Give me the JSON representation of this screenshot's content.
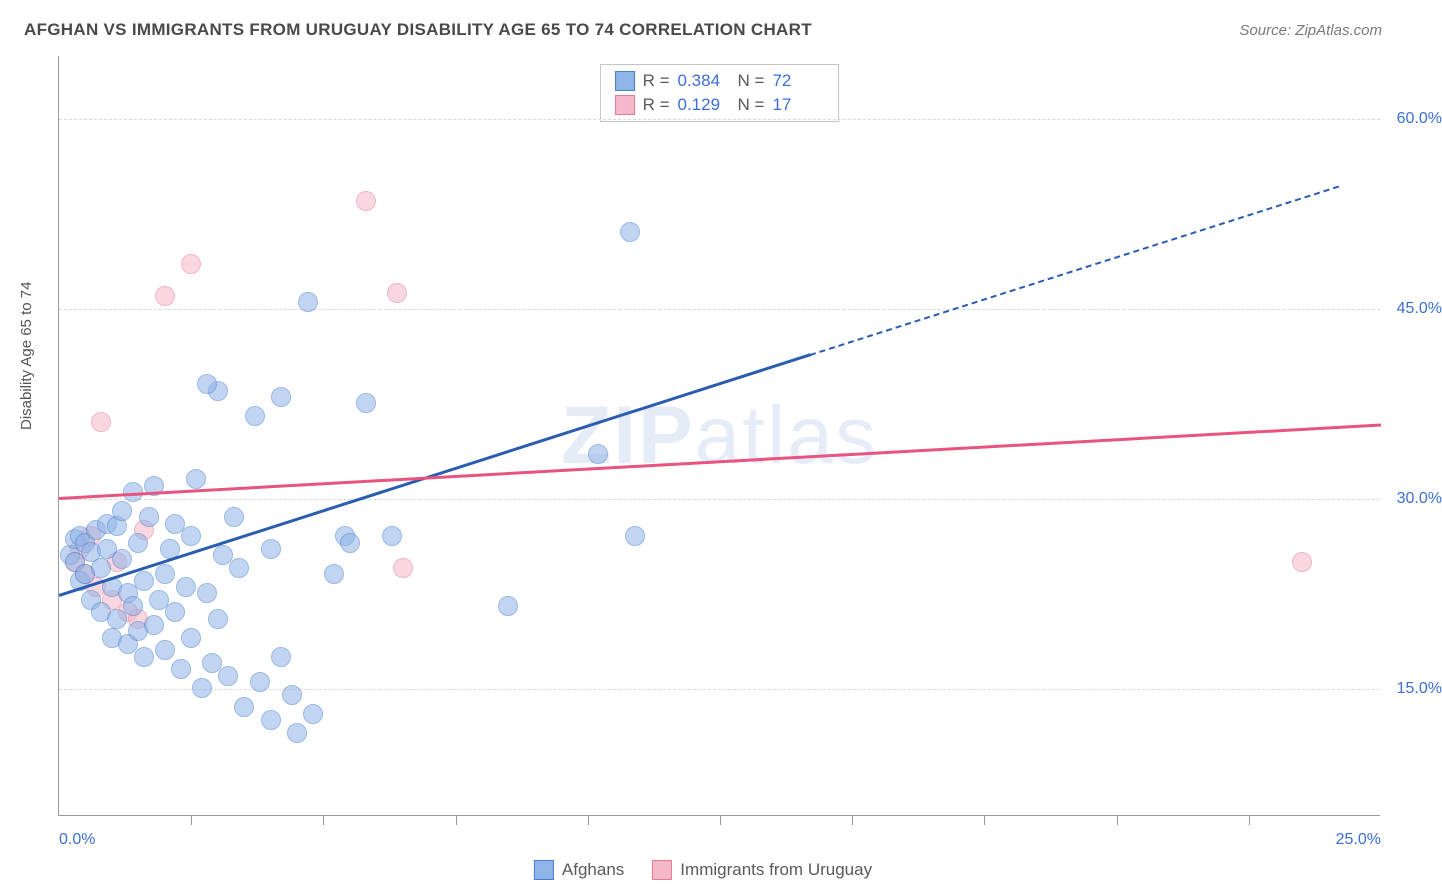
{
  "header": {
    "title": "AFGHAN VS IMMIGRANTS FROM URUGUAY DISABILITY AGE 65 TO 74 CORRELATION CHART",
    "source_prefix": "Source: ",
    "source_name": "ZipAtlas.com"
  },
  "chart": {
    "type": "scatter",
    "ylabel": "Disability Age 65 to 74",
    "x_domain": [
      0,
      25
    ],
    "y_domain": [
      5,
      65
    ],
    "x_ticks_minor": [
      2.5,
      5,
      7.5,
      10,
      12.5,
      15,
      17.5,
      20,
      22.5
    ],
    "x_tick_labels": [
      {
        "x": 0,
        "label": "0.0%",
        "align": "left"
      },
      {
        "x": 25,
        "label": "25.0%",
        "align": "right"
      }
    ],
    "y_gridlines": [
      15,
      30,
      45,
      60
    ],
    "y_tick_labels": [
      {
        "y": 15,
        "label": "15.0%"
      },
      {
        "y": 30,
        "label": "30.0%"
      },
      {
        "y": 45,
        "label": "45.0%"
      },
      {
        "y": 60,
        "label": "60.0%"
      }
    ],
    "background_color": "#ffffff",
    "grid_color": "#d8d8d8",
    "axis_color": "#9a9a9a",
    "tick_label_color": "#3b6fd6",
    "marker_radius": 10,
    "marker_opacity": 0.55,
    "watermark": {
      "bold": "ZIP",
      "light": "atlas",
      "color": "#6a8fd4",
      "opacity": 0.16
    }
  },
  "series": {
    "afghans": {
      "label": "Afghans",
      "fill": "#8fb4e8",
      "stroke": "#4a7fc9",
      "line_color": "#2a5db0",
      "R": "0.384",
      "N": "72",
      "regression": {
        "x1": 0,
        "y1": 22.5,
        "x2": 14.2,
        "y2": 41.5,
        "dash_to_x": 24.2,
        "dash_to_y": 54.8
      },
      "points": [
        [
          0.2,
          25.5
        ],
        [
          0.3,
          26.8
        ],
        [
          0.3,
          25.0
        ],
        [
          0.4,
          23.5
        ],
        [
          0.4,
          27.0
        ],
        [
          0.5,
          26.5
        ],
        [
          0.5,
          24.0
        ],
        [
          0.6,
          25.8
        ],
        [
          0.6,
          22.0
        ],
        [
          0.7,
          27.5
        ],
        [
          0.8,
          24.5
        ],
        [
          0.8,
          21.0
        ],
        [
          0.9,
          26.0
        ],
        [
          0.9,
          28.0
        ],
        [
          1.0,
          23.0
        ],
        [
          1.0,
          19.0
        ],
        [
          1.1,
          20.5
        ],
        [
          1.1,
          27.8
        ],
        [
          1.2,
          25.2
        ],
        [
          1.2,
          29.0
        ],
        [
          1.3,
          22.5
        ],
        [
          1.3,
          18.5
        ],
        [
          1.4,
          30.5
        ],
        [
          1.4,
          21.5
        ],
        [
          1.5,
          19.5
        ],
        [
          1.5,
          26.5
        ],
        [
          1.6,
          23.5
        ],
        [
          1.6,
          17.5
        ],
        [
          1.7,
          28.5
        ],
        [
          1.8,
          20.0
        ],
        [
          1.8,
          31.0
        ],
        [
          1.9,
          22.0
        ],
        [
          2.0,
          24.0
        ],
        [
          2.0,
          18.0
        ],
        [
          2.1,
          26.0
        ],
        [
          2.2,
          21.0
        ],
        [
          2.2,
          28.0
        ],
        [
          2.3,
          16.5
        ],
        [
          2.4,
          23.0
        ],
        [
          2.5,
          19.0
        ],
        [
          2.5,
          27.0
        ],
        [
          2.6,
          31.5
        ],
        [
          2.7,
          15.0
        ],
        [
          2.8,
          22.5
        ],
        [
          2.9,
          17.0
        ],
        [
          3.0,
          38.5
        ],
        [
          3.0,
          20.5
        ],
        [
          3.1,
          25.5
        ],
        [
          3.2,
          16.0
        ],
        [
          3.3,
          28.5
        ],
        [
          3.4,
          24.5
        ],
        [
          3.5,
          13.5
        ],
        [
          3.7,
          36.5
        ],
        [
          3.8,
          15.5
        ],
        [
          4.0,
          26.0
        ],
        [
          4.0,
          12.5
        ],
        [
          4.2,
          17.5
        ],
        [
          4.2,
          38.0
        ],
        [
          4.4,
          14.5
        ],
        [
          4.5,
          11.5
        ],
        [
          4.7,
          45.5
        ],
        [
          4.8,
          13.0
        ],
        [
          5.2,
          24.0
        ],
        [
          5.4,
          27.0
        ],
        [
          5.5,
          26.5
        ],
        [
          5.8,
          37.5
        ],
        [
          6.3,
          27.0
        ],
        [
          8.5,
          21.5
        ],
        [
          10.2,
          33.5
        ],
        [
          10.8,
          51.0
        ],
        [
          10.9,
          27.0
        ],
        [
          2.8,
          39.0
        ]
      ]
    },
    "uruguay": {
      "label": "Immigrants from Uruguay",
      "fill": "#f5b8c8",
      "stroke": "#e07a9a",
      "line_color": "#e8547f",
      "R": "0.129",
      "N": "17",
      "regression": {
        "x1": 0,
        "y1": 30.2,
        "x2": 25,
        "y2": 36.0
      },
      "points": [
        [
          0.3,
          25.0
        ],
        [
          0.4,
          26.0
        ],
        [
          0.5,
          24.0
        ],
        [
          0.6,
          27.0
        ],
        [
          0.7,
          23.0
        ],
        [
          0.8,
          36.0
        ],
        [
          1.0,
          22.0
        ],
        [
          1.1,
          25.0
        ],
        [
          1.3,
          21.0
        ],
        [
          1.5,
          20.5
        ],
        [
          1.6,
          27.5
        ],
        [
          2.0,
          46.0
        ],
        [
          2.5,
          48.5
        ],
        [
          5.8,
          53.5
        ],
        [
          6.4,
          46.2
        ],
        [
          6.5,
          24.5
        ],
        [
          23.5,
          25.0
        ]
      ]
    }
  },
  "stats_box": {
    "r_label": "R =",
    "n_label": "N ="
  }
}
